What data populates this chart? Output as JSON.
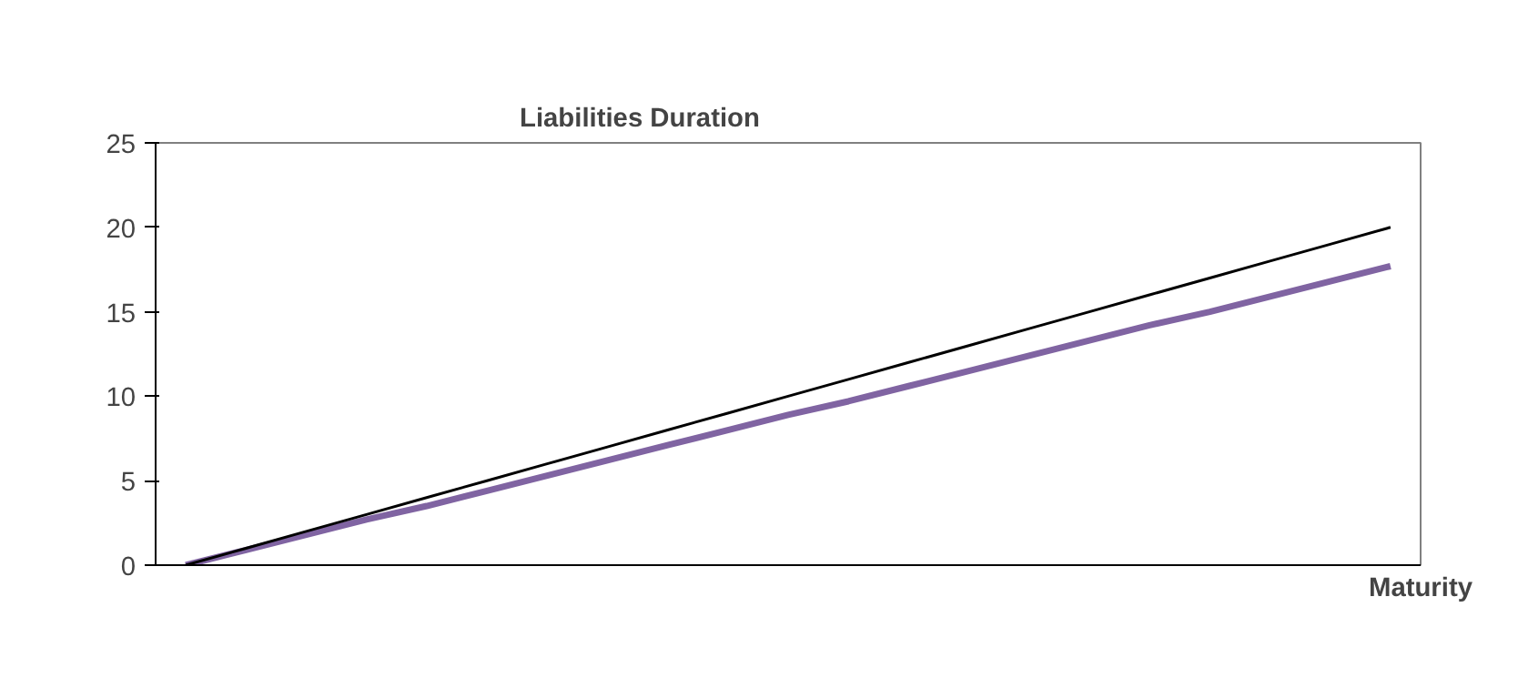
{
  "chart_data": {
    "type": "line",
    "title": "Liabilities Duration",
    "xlabel": "Maturity",
    "categories": [
      null,
      null,
      null,
      null,
      null,
      null,
      null,
      null,
      null,
      null,
      null,
      null,
      null,
      null,
      null,
      null,
      null,
      null,
      null,
      null,
      null
    ],
    "series": [
      {
        "color": "#000000",
        "values": [
          0,
          1,
          2,
          3,
          4,
          5,
          6,
          7,
          8,
          9,
          10,
          11,
          12,
          13,
          14,
          15,
          16,
          17,
          18,
          19,
          20
        ]
      },
      {
        "color": "#8064a2",
        "values": [
          0,
          0.9,
          1.8,
          2.7,
          3.5,
          4.4,
          5.3,
          6.2,
          7.1,
          8.0,
          8.9,
          9.7,
          10.6,
          11.5,
          12.4,
          13.3,
          14.2,
          15.0,
          15.9,
          16.8,
          17.7
        ]
      }
    ],
    "ylim": [
      0,
      25
    ],
    "yticks": [
      0,
      5,
      10,
      15,
      20,
      25
    ],
    "grid": false,
    "legend": false,
    "marker": "none",
    "line_style": "solid"
  }
}
